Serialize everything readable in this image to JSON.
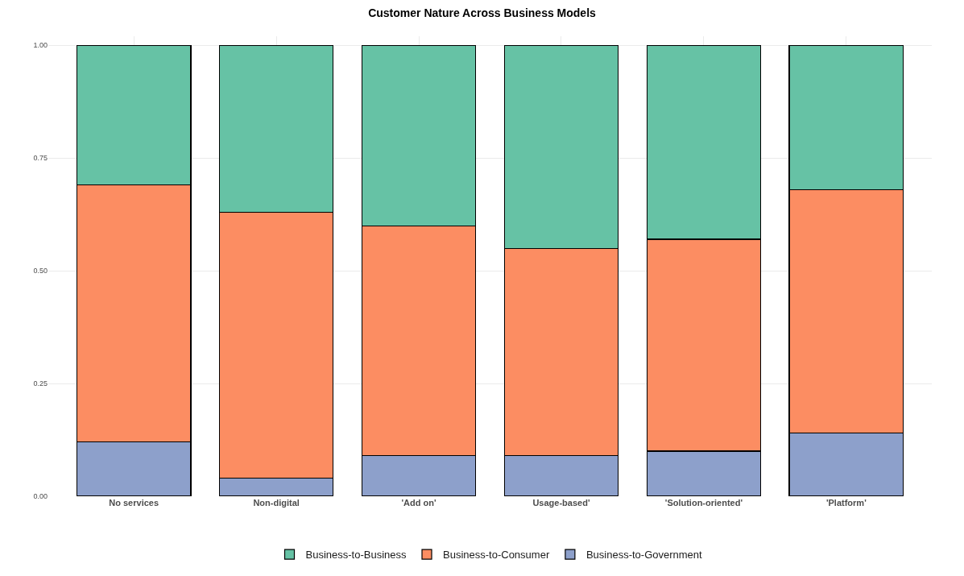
{
  "chart_data": {
    "type": "bar",
    "title": "Customer Nature Across Business Models",
    "stacked": true,
    "categories": [
      "No services",
      "Non-digital",
      "'Add on'",
      "Usage-based'",
      "'Solution-oriented'",
      "'Platform'"
    ],
    "series": [
      {
        "name": "Business-to-Government",
        "color": "#8da0cb",
        "values": [
          0.12,
          0.04,
          0.09,
          0.09,
          0.1,
          0.14
        ]
      },
      {
        "name": "Business-to-Consumer",
        "color": "#fc8d62",
        "values": [
          0.57,
          0.59,
          0.51,
          0.46,
          0.47,
          0.54
        ]
      },
      {
        "name": "Business-to-Business",
        "color": "#66c2a5",
        "values": [
          0.31,
          0.37,
          0.4,
          0.45,
          0.43,
          0.32
        ]
      }
    ],
    "ylim": [
      0,
      1.02
    ],
    "yticks": [
      {
        "value": 0,
        "label": "0.00"
      },
      {
        "value": 0.25,
        "label": "0.25"
      },
      {
        "value": 0.5,
        "label": "0.50"
      },
      {
        "value": 0.75,
        "label": "0.75"
      },
      {
        "value": 1,
        "label": "1.00"
      }
    ],
    "grid": true,
    "legend": "bottom"
  }
}
